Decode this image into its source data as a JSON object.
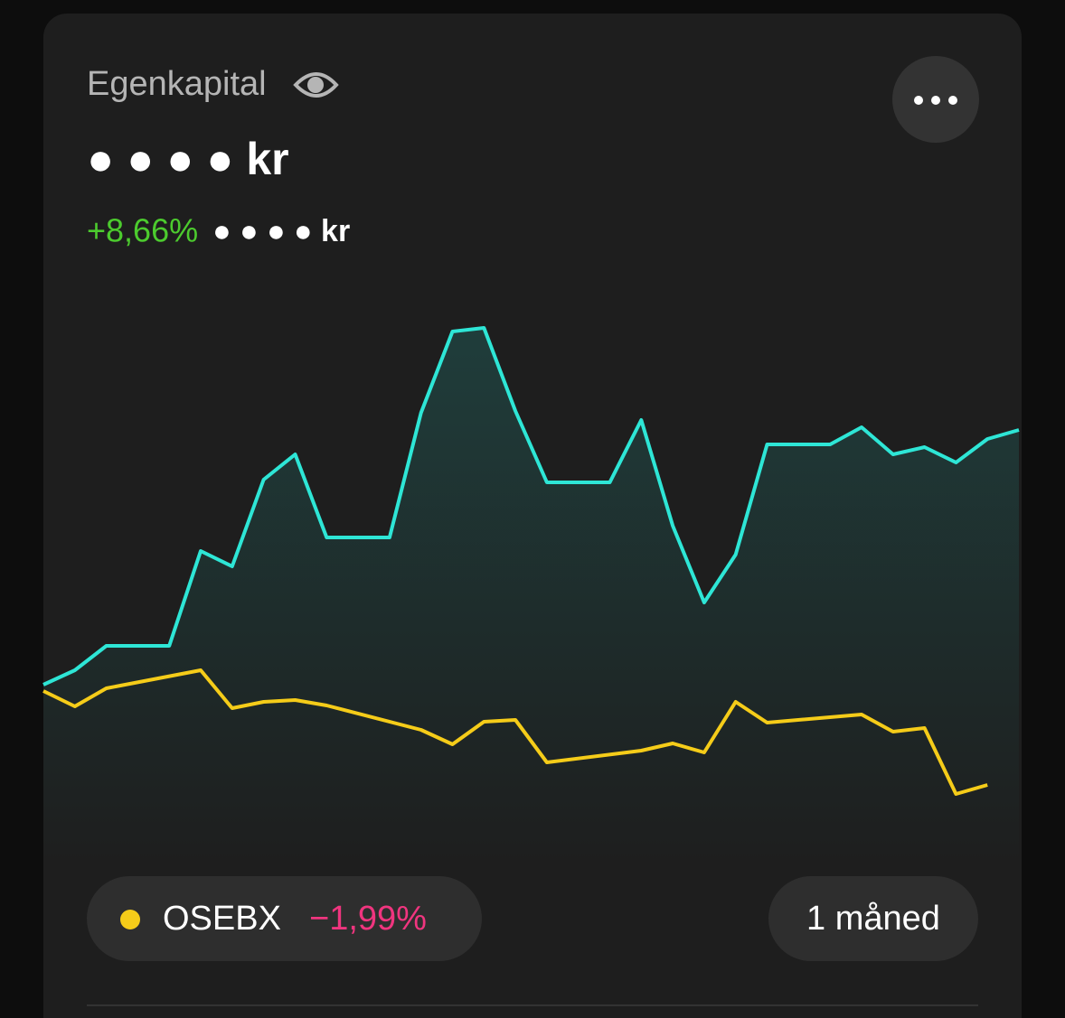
{
  "header": {
    "title": "Egenkapital",
    "amount": "● ● ● ● kr",
    "change_percent": "+8,66%",
    "change_amount": "● ● ● ● kr"
  },
  "chart_data": {
    "type": "line",
    "xlim": [
      0,
      31
    ],
    "ylim": [
      0,
      70
    ],
    "series": [
      {
        "color": "#2ee6d6",
        "x": [
          0,
          1,
          2,
          4,
          5,
          6,
          7,
          8,
          9,
          11,
          12,
          13,
          14,
          15,
          16,
          18,
          19,
          20,
          21,
          22,
          23,
          25,
          26,
          27,
          28,
          29,
          30,
          31
        ],
        "values": [
          24.2,
          25.8,
          28.5,
          28.5,
          39.0,
          37.3,
          46.9,
          49.7,
          40.5,
          40.5,
          54.3,
          63.3,
          63.7,
          54.5,
          46.6,
          46.6,
          53.5,
          41.8,
          33.3,
          38.6,
          50.8,
          50.8,
          52.7,
          49.7,
          50.5,
          48.8,
          51.4,
          52.4
        ]
      },
      {
        "name": "OSEBX",
        "color": "#f5cc19",
        "change": "−1,99%",
        "x": [
          0,
          1,
          2,
          5,
          6,
          7,
          8,
          9,
          12,
          13,
          14,
          15,
          16,
          19,
          20,
          21,
          22,
          23,
          26,
          27,
          28,
          29,
          30
        ],
        "values": [
          23.5,
          21.8,
          23.8,
          25.8,
          21.6,
          22.3,
          22.5,
          21.9,
          19.2,
          17.6,
          20.1,
          20.3,
          15.6,
          16.9,
          17.7,
          16.7,
          22.3,
          20.0,
          20.9,
          19.0,
          19.4,
          12.1,
          13.1
        ]
      }
    ]
  },
  "period_button": "1 måned"
}
